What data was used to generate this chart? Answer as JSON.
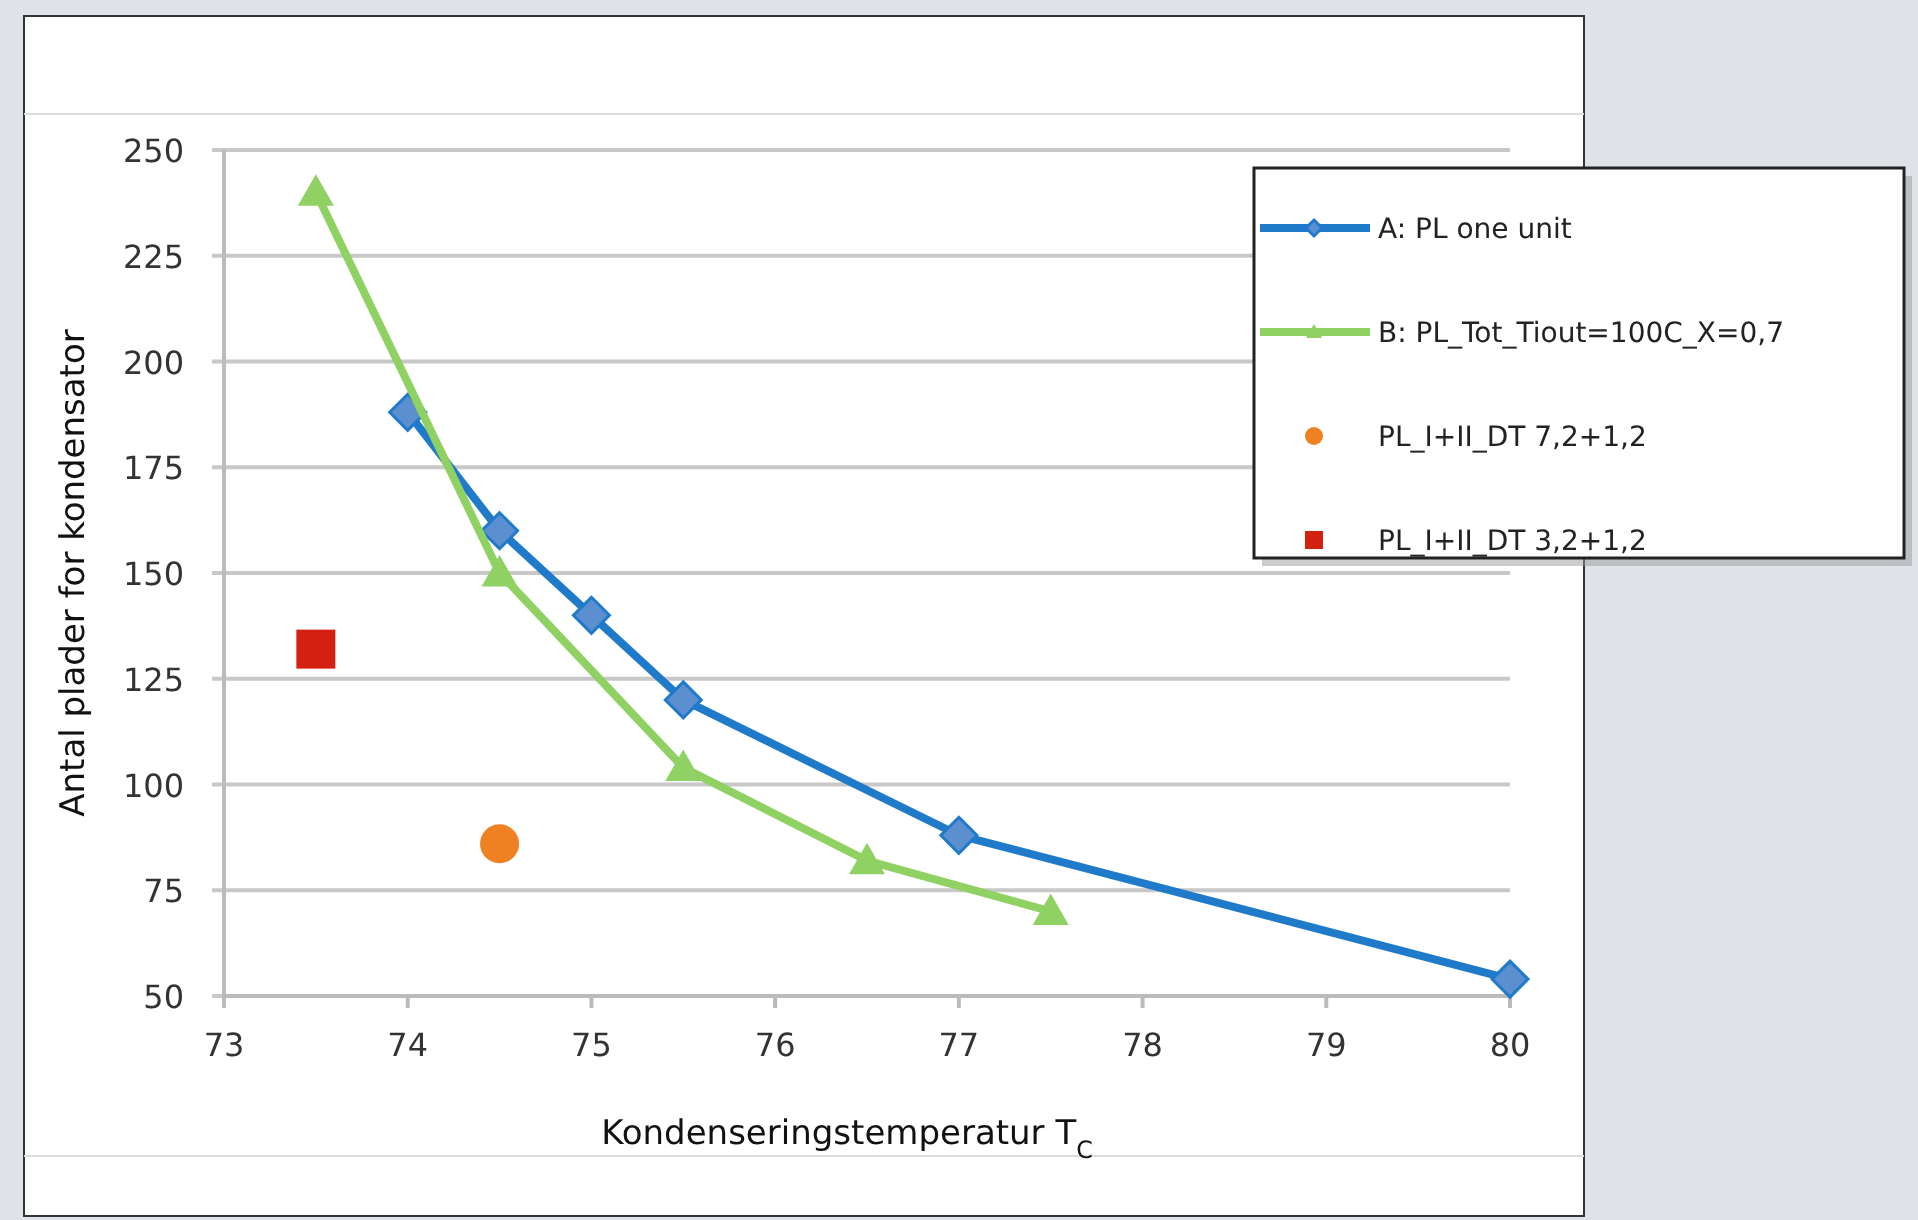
{
  "chart_data": {
    "type": "line",
    "xlabel": "Kondenseringstemperatur T$_{C}$",
    "ylabel": "Antal plader for kondensator",
    "xlim": [
      73,
      80
    ],
    "xticks": [
      73,
      74,
      75,
      76,
      77,
      78,
      79,
      80
    ],
    "ylim": [
      50,
      250
    ],
    "yticks": [
      50,
      75,
      100,
      125,
      150,
      175,
      200,
      225,
      250
    ],
    "grid": "y",
    "legend": "top right",
    "series": [
      {
        "name": "A: PL one unit",
        "color": "#1f7bc9",
        "marker": "diamond",
        "x": [
          74,
          74.5,
          75,
          75.5,
          77,
          80
        ],
        "values": [
          188,
          160,
          140,
          120,
          88,
          54
        ]
      },
      {
        "name": "B: PL_Tot_Tiout=100C_X=0,7",
        "color": "#8fd163",
        "marker": "triangle",
        "x": [
          73.5,
          74.5,
          75.5,
          76.5,
          77.5
        ],
        "values": [
          240,
          150,
          104,
          82,
          70
        ]
      },
      {
        "name": "PL_I+II_DT 7,2+1,2",
        "type": "scatter",
        "color": "#ef8122",
        "marker": "circle",
        "x": [
          74.5
        ],
        "values": [
          86
        ]
      },
      {
        "name": "PL_I+II_DT 3,2+1,2",
        "type": "scatter",
        "color": "#d42010",
        "marker": "square",
        "x": [
          73.5
        ],
        "values": [
          132
        ]
      }
    ]
  }
}
